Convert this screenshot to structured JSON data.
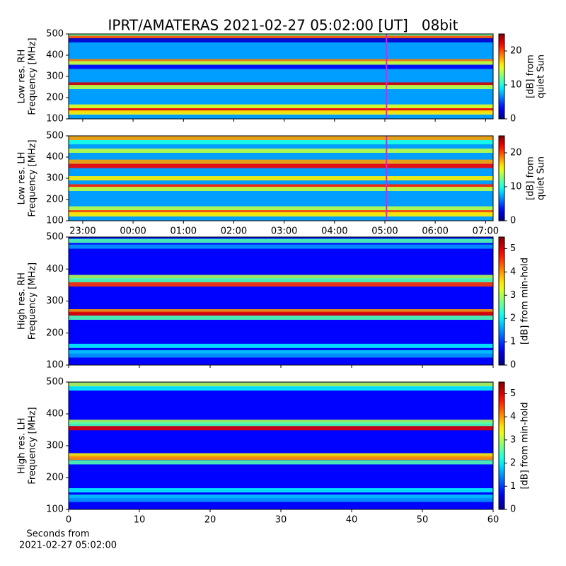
{
  "title": "IPRT/AMATERAS 2021-02-27 05:02:00 [UT]   08bit",
  "chart_data": [
    {
      "type": "heatmap",
      "ylabel": [
        "Low res. RH",
        "Frequency [MHz]"
      ],
      "colormap": "jet",
      "ylim": [
        100,
        500
      ],
      "yticks": [
        100,
        200,
        300,
        400,
        500
      ],
      "colorbar": {
        "label": [
          "[dB] from",
          "quiet Sun"
        ],
        "lim": [
          0,
          25
        ],
        "ticks": [
          0,
          10,
          20
        ]
      },
      "background": 7,
      "frequencies": [
        492,
        482,
        470,
        372,
        362,
        345,
        262,
        250,
        158,
        140,
        130
      ],
      "values": [
        12,
        20,
        2,
        19,
        14,
        3,
        23,
        14,
        15,
        22,
        16
      ],
      "marker_x": 5.033,
      "marker_color": "#e020e0"
    },
    {
      "type": "heatmap",
      "ylabel": [
        "Low res. LH",
        "Frequency [MHz]"
      ],
      "colormap": "jet",
      "xlim": [
        -1.28,
        7.15
      ],
      "xticks": [
        {
          "value": -1,
          "label": "23:00"
        },
        {
          "value": 0,
          "label": "00:00"
        },
        {
          "value": 1,
          "label": "01:00"
        },
        {
          "value": 2,
          "label": "02:00"
        },
        {
          "value": 3,
          "label": "03:00"
        },
        {
          "value": 4,
          "label": "04:00"
        },
        {
          "value": 5,
          "label": "05:00"
        },
        {
          "value": 6,
          "label": "06:00"
        },
        {
          "value": 7,
          "label": "07:00"
        }
      ],
      "ylim": [
        100,
        500
      ],
      "yticks": [
        100,
        200,
        300,
        400,
        500
      ],
      "colorbar": {
        "label": [
          "[dB] from",
          "quiet Sun"
        ],
        "lim": [
          0,
          25
        ],
        "ticks": [
          0,
          10,
          20
        ]
      },
      "background": 7,
      "frequencies": [
        490,
        470,
        430,
        378,
        358,
        300,
        262,
        250,
        158,
        140,
        130
      ],
      "values": [
        18,
        10,
        14,
        18,
        22,
        16,
        21,
        14,
        14,
        20,
        16
      ],
      "marker_x": 5.033,
      "marker_color": "#e020e0"
    },
    {
      "type": "heatmap",
      "ylabel": [
        "High res. RH",
        "Frequency [MHz]"
      ],
      "colormap": "jet",
      "ylim": [
        100,
        500
      ],
      "yticks": [
        100,
        200,
        300,
        400,
        500
      ],
      "colorbar": {
        "label": [
          "[dB] from min-hold"
        ],
        "lim": [
          0,
          5.5
        ],
        "ticks": [
          0,
          1,
          2,
          3,
          4,
          5
        ]
      },
      "background": 0.7,
      "frequencies": [
        488,
        470,
        375,
        365,
        352,
        268,
        260,
        248,
        160,
        140,
        130
      ],
      "values": [
        2.5,
        1.5,
        3,
        2.5,
        4.5,
        4,
        5,
        2.5,
        2,
        1.8,
        1.5
      ]
    },
    {
      "type": "heatmap",
      "ylabel": [
        "High res. LH",
        "Frequency [MHz]"
      ],
      "colormap": "jet",
      "xlim": [
        0,
        60
      ],
      "xticks": [
        0,
        10,
        20,
        30,
        40,
        50,
        60
      ],
      "xlabel": [
        "Seconds from",
        "2021-02-27 05:02:00"
      ],
      "ylim": [
        100,
        500
      ],
      "yticks": [
        100,
        200,
        300,
        400,
        500
      ],
      "colorbar": {
        "label": [
          "[dB] from min-hold"
        ],
        "lim": [
          0,
          5.5
        ],
        "ticks": [
          0,
          1,
          2,
          3,
          4,
          5
        ]
      },
      "background": 0.7,
      "frequencies": [
        492,
        480,
        375,
        368,
        355,
        270,
        262,
        248,
        160,
        140,
        130
      ],
      "values": [
        3,
        2,
        3,
        2.5,
        5,
        3.5,
        4,
        2.5,
        2,
        1.8,
        1.5
      ]
    }
  ]
}
